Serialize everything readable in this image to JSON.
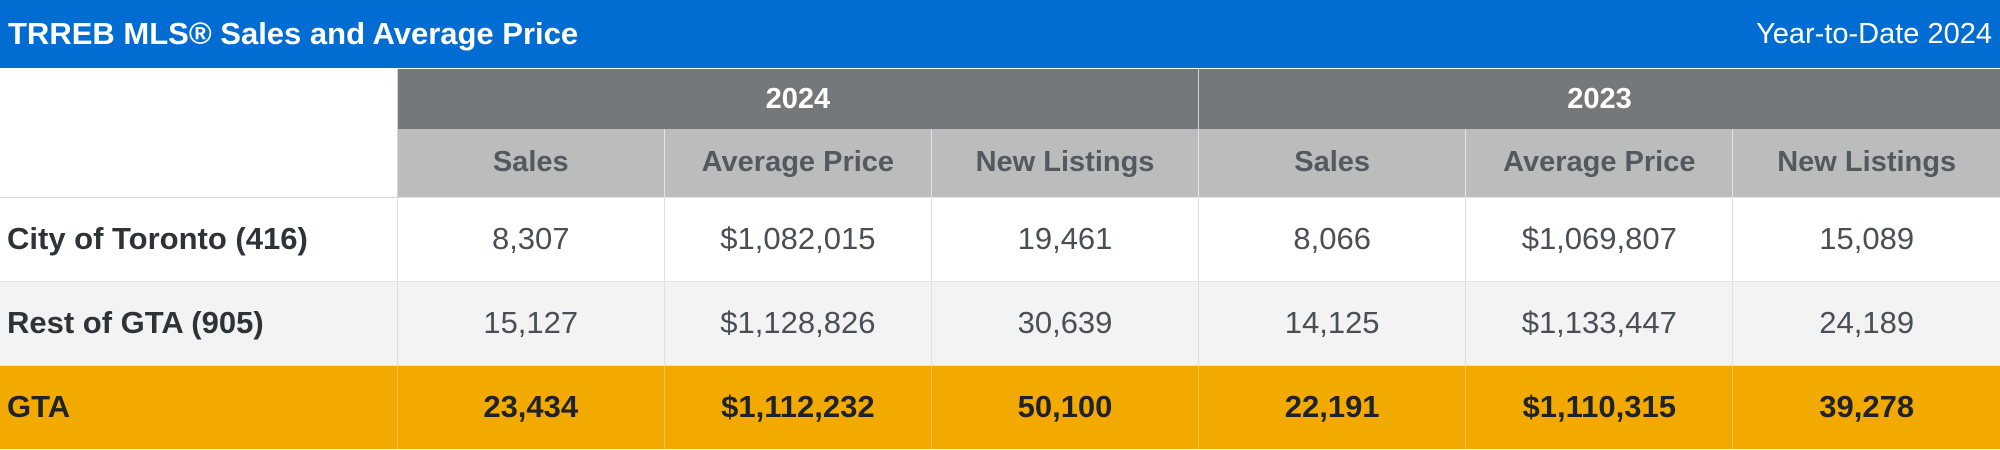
{
  "header": {
    "title": "TRREB MLS® Sales and Average Price",
    "period": "Year-to-Date 2024"
  },
  "columns": {
    "years": [
      "2024",
      "2023"
    ],
    "metrics": [
      "Sales",
      "Average Price",
      "New Listings"
    ]
  },
  "rows": [
    {
      "label": "City of Toronto (416)",
      "values": [
        "8,307",
        "$1,082,015",
        "19,461",
        "8,066",
        "$1,069,807",
        "15,089"
      ]
    },
    {
      "label": "Rest of GTA (905)",
      "values": [
        "15,127",
        "$1,128,826",
        "30,639",
        "14,125",
        "$1,133,447",
        "24,189"
      ]
    },
    {
      "label": "GTA",
      "values": [
        "23,434",
        "$1,112,232",
        "50,100",
        "22,191",
        "$1,110,315",
        "39,278"
      ]
    }
  ],
  "colors": {
    "title_bar": "#016dd2",
    "year_header": "#75787b",
    "metric_header": "#bbbcbc",
    "total_row": "#f2a900",
    "alt_row": "#f3f3f3"
  }
}
